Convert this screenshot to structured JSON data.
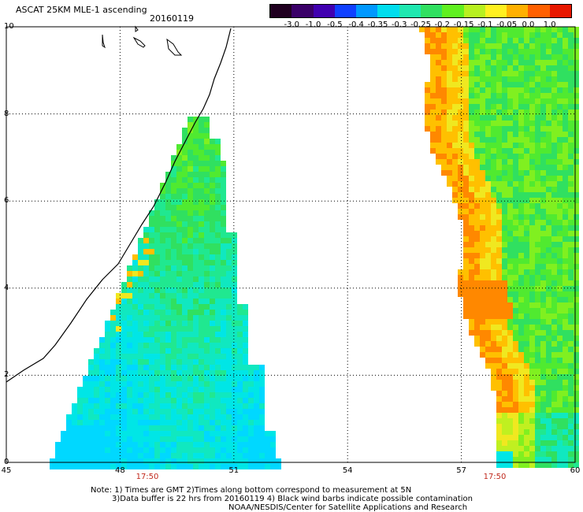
{
  "header": {
    "title": "ASCAT 25KM MLE-1 ascending",
    "date": "20160119"
  },
  "colorbar": {
    "labels": [
      "-3.0",
      "-1.0",
      "-0.5",
      "-0.4",
      "-0.35",
      "-0.3",
      "-0.25",
      "-0.2",
      "-0.15",
      "-0.1",
      "-0.05",
      "0.0",
      "1.0"
    ],
    "colors": [
      "#200020",
      "#3a0068",
      "#4000b0",
      "#1040ff",
      "#0098ff",
      "#00ddee",
      "#20e8b0",
      "#30e060",
      "#60f020",
      "#b8f020",
      "#fff020",
      "#ffb000",
      "#ff6000",
      "#e81800"
    ]
  },
  "map": {
    "x_ticks": [
      "45",
      "48",
      "51",
      "54",
      "57",
      "60"
    ],
    "y_ticks": [
      "0",
      "2",
      "4",
      "6",
      "8",
      "10"
    ],
    "pass_times": [
      "17:50",
      "17:50"
    ]
  },
  "footer": {
    "note_line1": "Note:  1) Times are GMT  2)Times along bottom correspond to measurement at 5N",
    "note_line2": "3)Data buffer is 22 hrs from 20160119  4) Black wind barbs indicate possible contamination",
    "note_line3": "NOAA/NESDIS/Center for Satellite Applications and Research"
  }
}
